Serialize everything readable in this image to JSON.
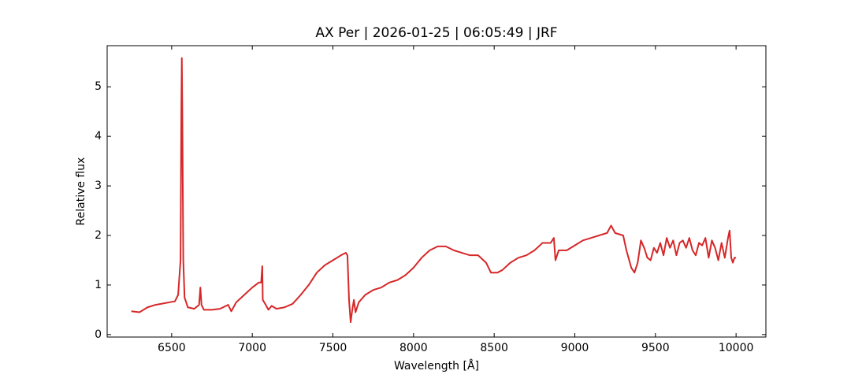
{
  "chart_data": {
    "type": "line",
    "title": "AX Per | 2026-01-25 | 06:05:49 | JRF",
    "x_label": "Wavelength [Å]",
    "y_label": "Relative flux",
    "x": [
      6250,
      6300,
      6350,
      6400,
      6450,
      6500,
      6520,
      6540,
      6555,
      6560,
      6563,
      6566,
      6572,
      6580,
      6600,
      6640,
      6670,
      6678,
      6685,
      6700,
      6750,
      6800,
      6850,
      6870,
      6900,
      6950,
      7000,
      7040,
      7055,
      7062,
      7065,
      7080,
      7100,
      7120,
      7150,
      7200,
      7250,
      7300,
      7350,
      7400,
      7450,
      7500,
      7550,
      7580,
      7590,
      7600,
      7610,
      7620,
      7630,
      7640,
      7660,
      7700,
      7750,
      7800,
      7850,
      7900,
      7950,
      8000,
      8050,
      8100,
      8150,
      8200,
      8250,
      8300,
      8350,
      8400,
      8450,
      8480,
      8520,
      8550,
      8600,
      8650,
      8700,
      8750,
      8800,
      8850,
      8870,
      8880,
      8900,
      8950,
      9000,
      9050,
      9100,
      9150,
      9200,
      9225,
      9250,
      9300,
      9320,
      9350,
      9370,
      9390,
      9410,
      9430,
      9450,
      9470,
      9490,
      9510,
      9530,
      9550,
      9570,
      9590,
      9610,
      9630,
      9650,
      9670,
      9690,
      9710,
      9730,
      9750,
      9770,
      9790,
      9810,
      9830,
      9850,
      9870,
      9890,
      9910,
      9930,
      9950,
      9960,
      9970,
      9980,
      9990,
      10000
    ],
    "series": [
      {
        "name": "AX Per",
        "color": "#d62728",
        "values": [
          0.47,
          0.45,
          0.55,
          0.6,
          0.63,
          0.66,
          0.67,
          0.8,
          1.5,
          4.5,
          5.58,
          4.5,
          1.5,
          0.75,
          0.55,
          0.52,
          0.6,
          0.95,
          0.6,
          0.5,
          0.5,
          0.52,
          0.6,
          0.47,
          0.65,
          0.8,
          0.95,
          1.05,
          1.05,
          1.38,
          0.7,
          0.62,
          0.5,
          0.58,
          0.52,
          0.55,
          0.62,
          0.8,
          1.0,
          1.25,
          1.4,
          1.5,
          1.6,
          1.65,
          1.6,
          0.7,
          0.25,
          0.5,
          0.7,
          0.45,
          0.65,
          0.8,
          0.9,
          0.95,
          1.05,
          1.1,
          1.2,
          1.35,
          1.55,
          1.7,
          1.78,
          1.78,
          1.7,
          1.65,
          1.6,
          1.6,
          1.45,
          1.25,
          1.25,
          1.3,
          1.45,
          1.55,
          1.6,
          1.7,
          1.85,
          1.85,
          1.95,
          1.5,
          1.7,
          1.7,
          1.8,
          1.9,
          1.95,
          2.0,
          2.05,
          2.2,
          2.05,
          2.0,
          1.7,
          1.35,
          1.25,
          1.45,
          1.9,
          1.75,
          1.55,
          1.5,
          1.75,
          1.65,
          1.85,
          1.6,
          1.95,
          1.75,
          1.9,
          1.6,
          1.85,
          1.9,
          1.75,
          1.95,
          1.7,
          1.6,
          1.85,
          1.8,
          1.95,
          1.55,
          1.9,
          1.75,
          1.5,
          1.85,
          1.55,
          1.95,
          2.1,
          1.55,
          1.45,
          1.55,
          1.55
        ]
      }
    ],
    "xlim": [
      6100,
      10185
    ],
    "ylim": [
      -0.05,
      5.83
    ],
    "xticks": [
      6500,
      7000,
      7500,
      8000,
      8500,
      9000,
      9500,
      10000
    ],
    "yticks": [
      0,
      1,
      2,
      3,
      4,
      5
    ]
  }
}
